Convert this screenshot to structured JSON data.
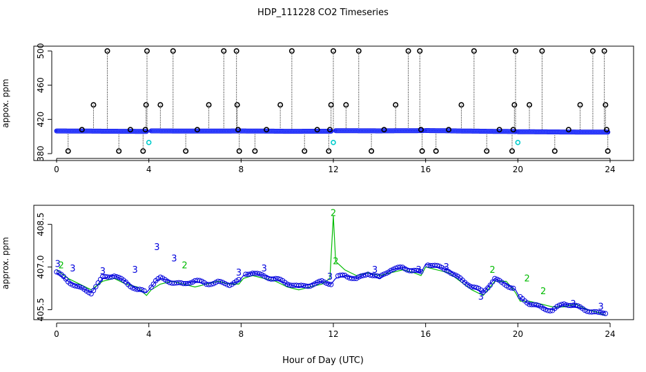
{
  "figure": {
    "title": "HDP_111228  CO2 Timeseries",
    "xlabel": "Hour of Day (UTC)"
  },
  "colors": {
    "black": "#000000",
    "blue": "#0000dd",
    "cyan": "#00cccc",
    "green": "#00bb00"
  },
  "chart_data": [
    {
      "type": "scatter",
      "panel": "top",
      "ylabel": "appox. ppm",
      "xlim": [
        0,
        24
      ],
      "ylim": [
        380,
        500
      ],
      "xticks": [
        0,
        4,
        8,
        12,
        16,
        20,
        24
      ],
      "yticks": [
        380,
        420,
        460,
        500
      ],
      "baseline": {
        "segments": [
          {
            "x": [
              0.0,
              1.0,
              2.0,
              3.0,
              3.9
            ],
            "y": [
              406.5,
              406.4,
              406.2,
              406.1,
              406.0
            ]
          },
          {
            "x": [
              4.1,
              6.0,
              8.0,
              10.0,
              11.9
            ],
            "y": [
              406.6,
              406.3,
              406.5,
              406.1,
              406.2
            ]
          },
          {
            "x": [
              12.1,
              14.0,
              15.9
            ],
            "y": [
              406.8,
              406.6,
              406.9
            ]
          },
          {
            "x": [
              16.0,
              18.0,
              19.9
            ],
            "y": [
              407.0,
              406.3,
              405.8
            ]
          },
          {
            "x": [
              20.0,
              22.0,
              23.9
            ],
            "y": [
              405.6,
              405.3,
              405.1
            ]
          }
        ]
      },
      "spikes": [
        {
          "x": 0.5,
          "y": 383
        },
        {
          "x": 1.1,
          "y": 408
        },
        {
          "x": 1.6,
          "y": 437
        },
        {
          "x": 2.2,
          "y": 500
        },
        {
          "x": 2.7,
          "y": 383
        },
        {
          "x": 3.2,
          "y": 408
        },
        {
          "x": 3.75,
          "y": 383
        },
        {
          "x": 3.85,
          "y": 408
        },
        {
          "x": 3.88,
          "y": 437
        },
        {
          "x": 3.92,
          "y": 500
        },
        {
          "x": 4.5,
          "y": 437
        },
        {
          "x": 5.05,
          "y": 500
        },
        {
          "x": 5.6,
          "y": 383
        },
        {
          "x": 6.1,
          "y": 408
        },
        {
          "x": 6.6,
          "y": 437
        },
        {
          "x": 7.25,
          "y": 500
        },
        {
          "x": 7.8,
          "y": 500
        },
        {
          "x": 7.83,
          "y": 437
        },
        {
          "x": 7.87,
          "y": 408
        },
        {
          "x": 7.92,
          "y": 383
        },
        {
          "x": 8.6,
          "y": 383
        },
        {
          "x": 9.1,
          "y": 408
        },
        {
          "x": 9.7,
          "y": 437
        },
        {
          "x": 10.2,
          "y": 500
        },
        {
          "x": 10.75,
          "y": 383
        },
        {
          "x": 11.3,
          "y": 408
        },
        {
          "x": 11.8,
          "y": 383
        },
        {
          "x": 11.85,
          "y": 408
        },
        {
          "x": 11.9,
          "y": 437
        },
        {
          "x": 12.0,
          "y": 500
        },
        {
          "x": 12.55,
          "y": 437
        },
        {
          "x": 13.1,
          "y": 500
        },
        {
          "x": 13.65,
          "y": 383
        },
        {
          "x": 14.2,
          "y": 408
        },
        {
          "x": 14.7,
          "y": 437
        },
        {
          "x": 15.25,
          "y": 500
        },
        {
          "x": 15.75,
          "y": 500
        },
        {
          "x": 15.8,
          "y": 408
        },
        {
          "x": 15.85,
          "y": 383
        },
        {
          "x": 16.45,
          "y": 383
        },
        {
          "x": 17.0,
          "y": 408
        },
        {
          "x": 17.55,
          "y": 437
        },
        {
          "x": 18.1,
          "y": 500
        },
        {
          "x": 18.65,
          "y": 383
        },
        {
          "x": 19.2,
          "y": 408
        },
        {
          "x": 19.75,
          "y": 383
        },
        {
          "x": 19.8,
          "y": 408
        },
        {
          "x": 19.85,
          "y": 437
        },
        {
          "x": 19.9,
          "y": 500
        },
        {
          "x": 20.5,
          "y": 437
        },
        {
          "x": 21.05,
          "y": 500
        },
        {
          "x": 21.6,
          "y": 383
        },
        {
          "x": 22.2,
          "y": 408
        },
        {
          "x": 22.7,
          "y": 437
        },
        {
          "x": 23.25,
          "y": 500
        },
        {
          "x": 23.75,
          "y": 500
        },
        {
          "x": 23.8,
          "y": 437
        },
        {
          "x": 23.85,
          "y": 408
        },
        {
          "x": 23.9,
          "y": 383
        }
      ],
      "cyan_points": [
        {
          "x": 4.0,
          "y": 393
        },
        {
          "x": 12.0,
          "y": 393
        },
        {
          "x": 20.0,
          "y": 393
        }
      ]
    },
    {
      "type": "line",
      "panel": "bottom",
      "ylabel": "approx. ppm",
      "xlim": [
        0,
        24
      ],
      "ylim": [
        405.2,
        409.0
      ],
      "xticks": [
        0,
        4,
        8,
        12,
        16,
        20,
        24
      ],
      "yticks": [
        405.5,
        407.0,
        408.5
      ],
      "ytick_labels": [
        "405.5",
        "407.0",
        "408.5"
      ],
      "series": [
        {
          "name": "3",
          "color": "blue",
          "x": [
            0.0,
            0.5,
            1.0,
            1.5,
            2.0,
            2.5,
            3.0,
            3.5,
            3.9,
            4.1,
            4.3,
            4.5,
            5.0,
            5.5,
            6.0,
            6.5,
            7.0,
            7.5,
            7.9,
            8.1,
            8.5,
            9.0,
            9.5,
            10.0,
            10.5,
            11.0,
            11.5,
            11.9,
            12.1,
            12.5,
            13.0,
            13.5,
            14.0,
            14.5,
            15.0,
            15.5,
            15.8,
            16.0,
            16.5,
            17.0,
            17.5,
            18.0,
            18.5,
            19.0,
            19.5,
            19.9,
            20.1,
            20.5,
            21.0,
            21.5,
            22.0,
            22.5,
            23.0,
            23.5,
            23.8
          ],
          "y": [
            406.8,
            406.5,
            406.3,
            406.1,
            406.6,
            406.7,
            406.5,
            406.2,
            406.1,
            406.3,
            406.5,
            406.6,
            406.5,
            406.4,
            406.5,
            406.4,
            406.5,
            406.4,
            406.5,
            406.7,
            406.8,
            406.7,
            406.6,
            406.4,
            406.3,
            406.4,
            406.5,
            406.4,
            406.6,
            406.7,
            406.6,
            406.8,
            406.6,
            406.9,
            407.0,
            406.9,
            406.8,
            407.1,
            407.0,
            406.9,
            406.6,
            406.3,
            406.1,
            406.6,
            406.4,
            406.2,
            405.9,
            405.7,
            405.6,
            405.5,
            405.7,
            405.6,
            405.5,
            405.4,
            405.4
          ]
        },
        {
          "name": "2",
          "color": "green",
          "x": [
            0.0,
            0.5,
            1.0,
            1.5,
            2.0,
            2.5,
            3.0,
            3.5,
            3.9,
            4.1,
            4.5,
            5.0,
            5.5,
            6.0,
            6.5,
            7.0,
            7.5,
            7.9,
            8.1,
            8.5,
            9.0,
            9.5,
            10.0,
            10.5,
            11.0,
            11.5,
            11.85,
            12.0,
            12.1,
            12.5,
            13.0,
            13.5,
            14.0,
            14.5,
            15.0,
            15.5,
            15.8,
            16.0,
            16.5,
            17.0,
            17.5,
            18.0,
            18.5,
            19.0,
            19.5,
            19.9,
            20.1,
            20.5,
            21.0,
            21.5,
            22.0,
            22.5,
            23.0,
            23.5,
            23.8
          ],
          "y": [
            406.9,
            406.6,
            406.4,
            406.2,
            406.5,
            406.6,
            406.4,
            406.3,
            406.0,
            406.2,
            406.4,
            406.5,
            406.4,
            406.3,
            406.4,
            406.5,
            406.4,
            406.4,
            406.6,
            406.7,
            406.6,
            406.5,
            406.3,
            406.2,
            406.3,
            406.4,
            406.6,
            408.8,
            407.2,
            406.9,
            406.7,
            406.8,
            406.7,
            406.8,
            406.9,
            406.8,
            406.7,
            407.0,
            406.9,
            406.8,
            406.5,
            406.2,
            406.0,
            406.5,
            406.5,
            406.1,
            405.8,
            405.8,
            405.7,
            405.6,
            405.6,
            405.7,
            405.5,
            405.4,
            405.3
          ]
        }
      ],
      "label_points": [
        {
          "t": "3",
          "x": 0.05,
          "y": 407.0,
          "c": "blue"
        },
        {
          "t": "2",
          "x": 0.2,
          "y": 406.95,
          "c": "green"
        },
        {
          "t": "3",
          "x": 0.7,
          "y": 406.85,
          "c": "blue"
        },
        {
          "t": "3",
          "x": 2.0,
          "y": 406.75,
          "c": "blue"
        },
        {
          "t": "3",
          "x": 3.4,
          "y": 406.8,
          "c": "blue"
        },
        {
          "t": "3",
          "x": 4.35,
          "y": 407.6,
          "c": "blue"
        },
        {
          "t": "3",
          "x": 5.1,
          "y": 407.2,
          "c": "blue"
        },
        {
          "t": "2",
          "x": 5.55,
          "y": 406.95,
          "c": "green"
        },
        {
          "t": "3",
          "x": 7.9,
          "y": 406.7,
          "c": "blue"
        },
        {
          "t": "3",
          "x": 9.0,
          "y": 406.85,
          "c": "blue"
        },
        {
          "t": "3",
          "x": 11.85,
          "y": 406.55,
          "c": "blue"
        },
        {
          "t": "2",
          "x": 12.0,
          "y": 408.8,
          "c": "green"
        },
        {
          "t": "2",
          "x": 12.1,
          "y": 407.1,
          "c": "green"
        },
        {
          "t": "3",
          "x": 13.8,
          "y": 406.8,
          "c": "blue"
        },
        {
          "t": "3",
          "x": 15.7,
          "y": 406.8,
          "c": "blue"
        },
        {
          "t": "3",
          "x": 16.9,
          "y": 406.9,
          "c": "blue"
        },
        {
          "t": "3",
          "x": 18.4,
          "y": 405.85,
          "c": "blue"
        },
        {
          "t": "2",
          "x": 18.9,
          "y": 406.8,
          "c": "green"
        },
        {
          "t": "2",
          "x": 20.4,
          "y": 406.5,
          "c": "green"
        },
        {
          "t": "2",
          "x": 21.1,
          "y": 406.05,
          "c": "green"
        },
        {
          "t": "3",
          "x": 22.4,
          "y": 405.6,
          "c": "blue"
        },
        {
          "t": "3",
          "x": 23.6,
          "y": 405.5,
          "c": "blue"
        }
      ]
    }
  ]
}
